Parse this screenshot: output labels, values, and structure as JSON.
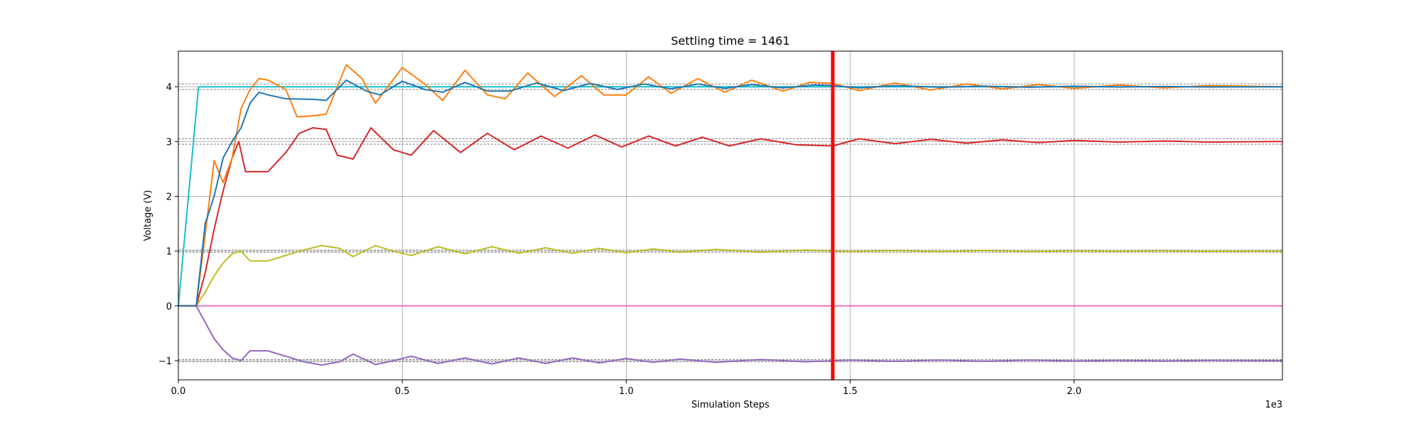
{
  "chart_data": {
    "type": "line",
    "title": "Settling time = 1461",
    "xlabel": "Simulation Steps",
    "ylabel": "Voltage (V)",
    "x_offset_label": "1e3",
    "xlim": [
      0,
      2465
    ],
    "ylim": [
      -1.35,
      4.65
    ],
    "grid": true,
    "x_ticks": [
      {
        "value": 0,
        "label": "0.0"
      },
      {
        "value": 500,
        "label": "0.5"
      },
      {
        "value": 1000,
        "label": "1.0"
      },
      {
        "value": 1500,
        "label": "1.5"
      },
      {
        "value": 2000,
        "label": "2.0"
      }
    ],
    "y_ticks": [
      {
        "value": -1,
        "label": "−1"
      },
      {
        "value": 0,
        "label": "0"
      },
      {
        "value": 1,
        "label": "1"
      },
      {
        "value": 2,
        "label": "2"
      },
      {
        "value": 3,
        "label": "3"
      },
      {
        "value": 4,
        "label": "4"
      }
    ],
    "reference_lines": [
      3.95,
      4.05,
      2.95,
      3.05,
      0.98,
      1.02,
      -0.98,
      -1.02
    ],
    "settling_time": 1461,
    "colors": {
      "marker": "#ff0000",
      "reference": "#808080",
      "grid": "#b0b0b0"
    },
    "series": [
      {
        "color": "#17becf",
        "x": [
          0,
          45,
          2465
        ],
        "y": [
          0,
          4.0,
          4.0
        ]
      },
      {
        "color": "#e377c2",
        "x": [
          0,
          2465
        ],
        "y": [
          0,
          0
        ]
      },
      {
        "color": "#9467bd",
        "x": [
          0,
          40,
          60,
          80,
          100,
          120,
          140,
          160,
          200,
          240,
          280,
          320,
          360,
          390,
          440,
          480,
          520,
          580,
          640,
          700,
          760,
          820,
          880,
          940,
          1000,
          1060,
          1120,
          1200,
          1300,
          1400,
          1500,
          1600,
          1700,
          1800,
          1900,
          2000,
          2100,
          2200,
          2300,
          2465
        ],
        "y": [
          0,
          0,
          -0.3,
          -0.6,
          -0.8,
          -0.95,
          -1.0,
          -0.82,
          -0.82,
          -0.92,
          -1.02,
          -1.08,
          -1.02,
          -0.88,
          -1.07,
          -1.0,
          -0.92,
          -1.05,
          -0.95,
          -1.06,
          -0.95,
          -1.05,
          -0.95,
          -1.04,
          -0.96,
          -1.03,
          -0.97,
          -1.03,
          -0.98,
          -1.02,
          -0.99,
          -1.01,
          -0.99,
          -1.01,
          -0.99,
          -1.005,
          -0.995,
          -1.005,
          -0.995,
          -1.0
        ]
      },
      {
        "color": "#bcbd22",
        "x": [
          0,
          40,
          60,
          80,
          100,
          120,
          140,
          160,
          200,
          240,
          280,
          320,
          360,
          390,
          440,
          480,
          520,
          580,
          640,
          700,
          760,
          820,
          880,
          940,
          1000,
          1060,
          1120,
          1200,
          1300,
          1400,
          1500,
          1600,
          1700,
          1800,
          1900,
          2000,
          2100,
          2200,
          2300,
          2465
        ],
        "y": [
          0,
          0,
          0.25,
          0.55,
          0.78,
          0.95,
          1.0,
          0.82,
          0.82,
          0.92,
          1.02,
          1.1,
          1.05,
          0.9,
          1.1,
          1.0,
          0.92,
          1.08,
          0.95,
          1.08,
          0.96,
          1.06,
          0.96,
          1.05,
          0.97,
          1.04,
          0.98,
          1.03,
          0.98,
          1.02,
          0.99,
          1.01,
          0.99,
          1.01,
          0.99,
          1.005,
          0.995,
          1.005,
          0.995,
          1.0
        ]
      },
      {
        "color": "#d62728",
        "x": [
          0,
          40,
          60,
          80,
          100,
          120,
          135,
          150,
          200,
          240,
          270,
          300,
          330,
          355,
          390,
          430,
          480,
          520,
          570,
          630,
          690,
          750,
          810,
          870,
          930,
          990,
          1050,
          1110,
          1170,
          1230,
          1300,
          1380,
          1461,
          1520,
          1600,
          1680,
          1760,
          1840,
          1920,
          2000,
          2100,
          2200,
          2300,
          2465
        ],
        "y": [
          0,
          0,
          0.6,
          1.4,
          2.1,
          2.7,
          3.0,
          2.45,
          2.45,
          2.8,
          3.15,
          3.25,
          3.22,
          2.75,
          2.68,
          3.25,
          2.85,
          2.75,
          3.2,
          2.8,
          3.15,
          2.85,
          3.1,
          2.88,
          3.12,
          2.9,
          3.1,
          2.92,
          3.08,
          2.92,
          3.05,
          2.94,
          2.92,
          3.05,
          2.96,
          3.04,
          2.97,
          3.03,
          2.98,
          3.02,
          2.99,
          3.01,
          2.99,
          3.0
        ]
      },
      {
        "color": "#ff7f0e",
        "x": [
          0,
          40,
          60,
          80,
          100,
          120,
          140,
          160,
          180,
          200,
          240,
          265,
          300,
          330,
          375,
          410,
          440,
          500,
          550,
          590,
          640,
          690,
          730,
          780,
          840,
          900,
          950,
          1000,
          1050,
          1100,
          1160,
          1220,
          1280,
          1350,
          1410,
          1461,
          1520,
          1600,
          1680,
          1760,
          1840,
          1920,
          2000,
          2100,
          2200,
          2300,
          2465
        ],
        "y": [
          0,
          0,
          1.3,
          2.65,
          2.25,
          2.7,
          3.6,
          3.95,
          4.15,
          4.12,
          3.95,
          3.45,
          3.47,
          3.5,
          4.4,
          4.15,
          3.7,
          4.35,
          4.05,
          3.75,
          4.3,
          3.85,
          3.78,
          4.25,
          3.82,
          4.2,
          3.85,
          3.85,
          4.18,
          3.88,
          4.15,
          3.9,
          4.12,
          3.92,
          4.08,
          4.06,
          3.93,
          4.07,
          3.94,
          4.05,
          3.96,
          4.04,
          3.97,
          4.03,
          3.98,
          4.02,
          4.0
        ]
      },
      {
        "color": "#1f77b4",
        "x": [
          0,
          40,
          60,
          80,
          100,
          120,
          140,
          160,
          180,
          200,
          240,
          300,
          330,
          375,
          420,
          450,
          500,
          550,
          590,
          640,
          690,
          740,
          800,
          860,
          920,
          980,
          1040,
          1100,
          1160,
          1220,
          1280,
          1350,
          1420,
          1461,
          1520,
          1600,
          1700,
          1800,
          1900,
          2000,
          2100,
          2200,
          2300,
          2465
        ],
        "y": [
          0,
          0,
          1.5,
          2.0,
          2.7,
          3.0,
          3.25,
          3.7,
          3.9,
          3.85,
          3.78,
          3.77,
          3.75,
          4.12,
          3.92,
          3.85,
          4.1,
          3.95,
          3.9,
          4.08,
          3.92,
          3.92,
          4.07,
          3.93,
          4.06,
          3.95,
          4.05,
          3.96,
          4.05,
          3.97,
          4.04,
          3.98,
          4.03,
          4.02,
          3.98,
          4.02,
          3.99,
          4.01,
          3.99,
          4.01,
          3.995,
          4.005,
          3.995,
          4.0
        ]
      }
    ]
  }
}
